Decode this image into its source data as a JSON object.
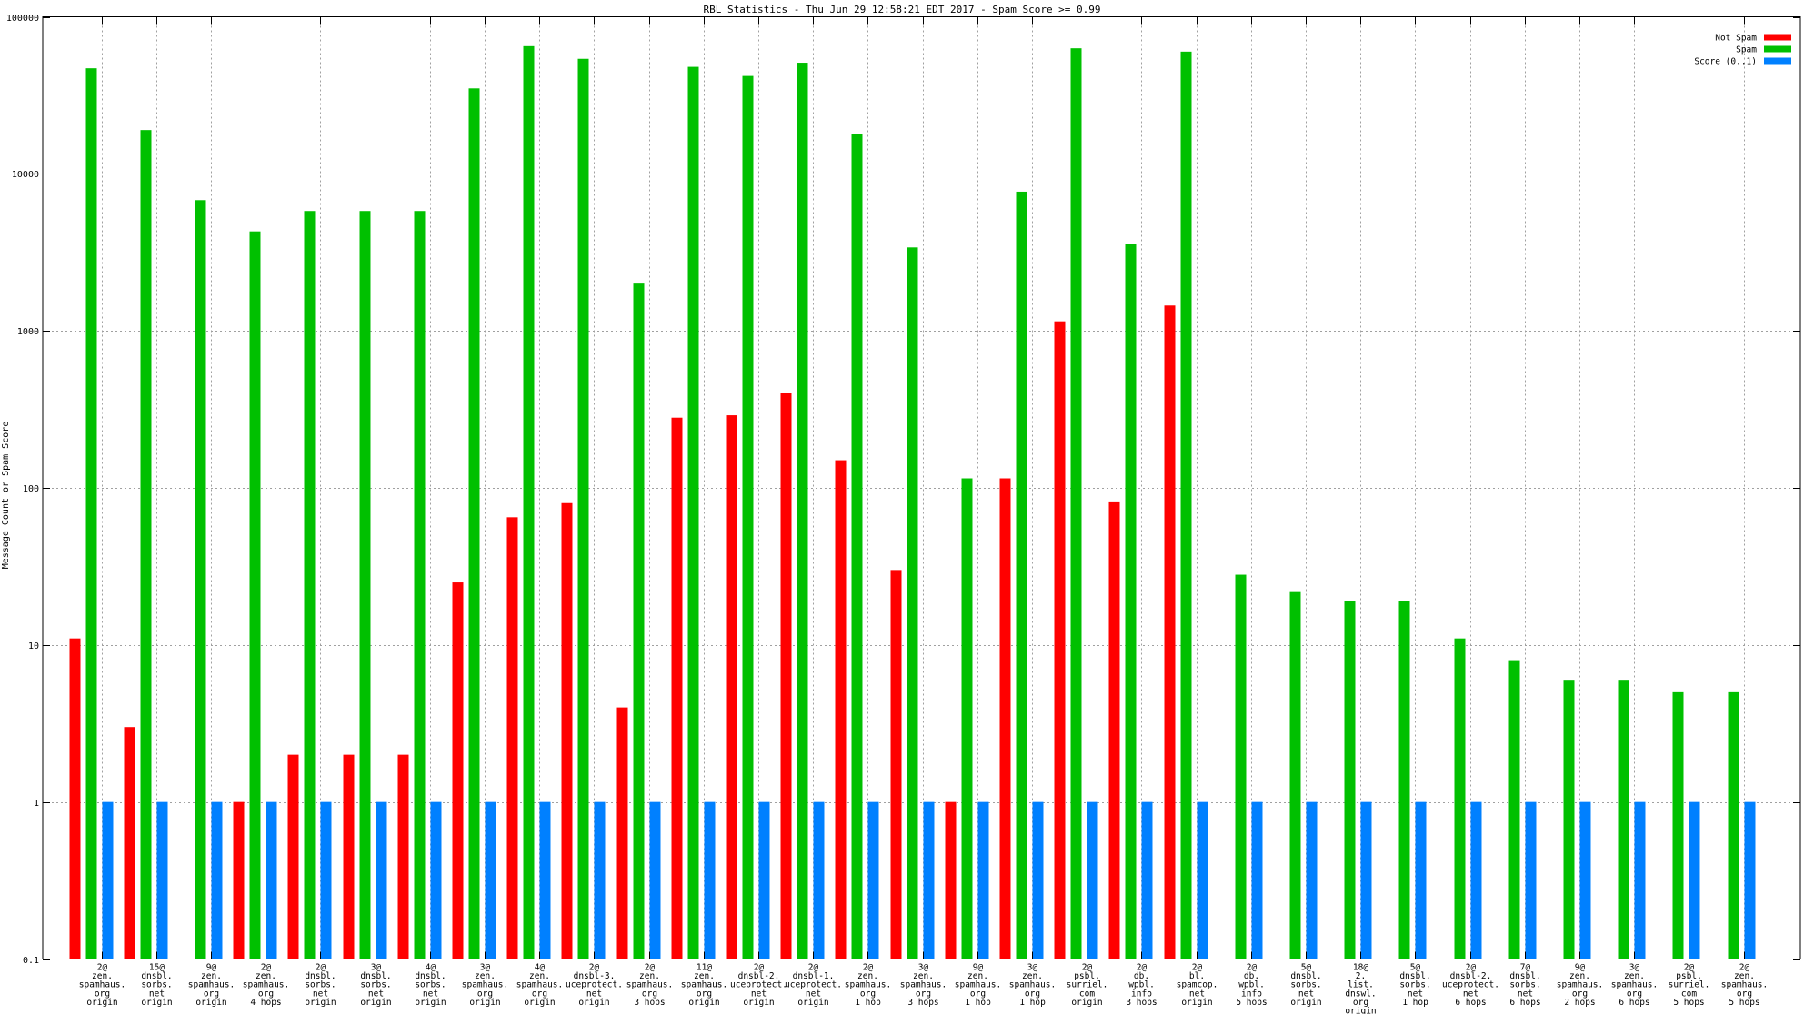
{
  "chart_data": {
    "type": "bar",
    "title": "RBL Statistics - Thu Jun 29 12:58:21 EDT 2017 - Spam Score >= 0.99",
    "xlabel": "",
    "ylabel": "Message Count or Spam Score",
    "yscale": "log",
    "ylim": [
      0.1,
      100000
    ],
    "yticks": [
      {
        "value": 0.1,
        "label": "0.1"
      },
      {
        "value": 1,
        "label": "1"
      },
      {
        "value": 10,
        "label": "10"
      },
      {
        "value": 100,
        "label": "100"
      },
      {
        "value": 1000,
        "label": "1000"
      },
      {
        "value": 10000,
        "label": "10000"
      },
      {
        "value": 100000,
        "label": "100000"
      }
    ],
    "grid": true,
    "legend_position": "top-right",
    "categories": [
      [
        "2@",
        "zen.",
        "spamhaus.",
        "org",
        "origin"
      ],
      [
        "15@",
        "dnsbl.",
        "sorbs.",
        "net",
        "origin"
      ],
      [
        "9@",
        "zen.",
        "spamhaus.",
        "org",
        "origin"
      ],
      [
        "2@",
        "zen.",
        "spamhaus.",
        "org",
        "4 hops"
      ],
      [
        "2@",
        "dnsbl.",
        "sorbs.",
        "net",
        "origin"
      ],
      [
        "3@",
        "dnsbl.",
        "sorbs.",
        "net",
        "origin"
      ],
      [
        "4@",
        "dnsbl.",
        "sorbs.",
        "net",
        "origin"
      ],
      [
        "3@",
        "zen.",
        "spamhaus.",
        "org",
        "origin"
      ],
      [
        "4@",
        "zen.",
        "spamhaus.",
        "org",
        "origin"
      ],
      [
        "2@",
        "dnsbl-3.",
        "uceprotect.",
        "net",
        "origin"
      ],
      [
        "2@",
        "zen.",
        "spamhaus.",
        "org",
        "3 hops"
      ],
      [
        "11@",
        "zen.",
        "spamhaus.",
        "org",
        "origin"
      ],
      [
        "2@",
        "dnsbl-2.",
        "uceprotect.",
        "net",
        "origin"
      ],
      [
        "2@",
        "dnsbl-1.",
        "uceprotect.",
        "net",
        "origin"
      ],
      [
        "2@",
        "zen.",
        "spamhaus.",
        "org",
        "1 hop"
      ],
      [
        "3@",
        "zen.",
        "spamhaus.",
        "org",
        "3 hops"
      ],
      [
        "9@",
        "zen.",
        "spamhaus.",
        "org",
        "1 hop"
      ],
      [
        "3@",
        "zen.",
        "spamhaus.",
        "org",
        "1 hop"
      ],
      [
        "2@",
        "psbl.",
        "surriel.",
        "com",
        "origin"
      ],
      [
        "2@",
        "db.",
        "wpbl.",
        "info",
        "3 hops"
      ],
      [
        "2@",
        "bl.",
        "spamcop.",
        "net",
        "origin"
      ],
      [
        "2@",
        "db.",
        "wpbl.",
        "info",
        "5 hops"
      ],
      [
        "5@",
        "dnsbl.",
        "sorbs.",
        "net",
        "origin"
      ],
      [
        "18@",
        "2.",
        "list.",
        "dnswl.",
        "org",
        "origin"
      ],
      [
        "5@",
        "dnsbl.",
        "sorbs.",
        "net",
        "1 hop"
      ],
      [
        "2@",
        "dnsbl-2.",
        "uceprotect.",
        "net",
        "6 hops"
      ],
      [
        "7@",
        "dnsbl.",
        "sorbs.",
        "net",
        "6 hops"
      ],
      [
        "9@",
        "zen.",
        "spamhaus.",
        "org",
        "2 hops"
      ],
      [
        "3@",
        "zen.",
        "spamhaus.",
        "org",
        "6 hops"
      ],
      [
        "2@",
        "psbl.",
        "surriel.",
        "com",
        "5 hops"
      ],
      [
        "2@",
        "zen.",
        "spamhaus.",
        "org",
        "5 hops"
      ]
    ],
    "series": [
      {
        "name": "Not Spam",
        "color": "#ff0000",
        "values": [
          11,
          3,
          null,
          1,
          2,
          2,
          2,
          25,
          65,
          80,
          4,
          280,
          290,
          400,
          150,
          30,
          1,
          115,
          1150,
          82,
          1450,
          null,
          null,
          null,
          null,
          null,
          null,
          null,
          null,
          null,
          null
        ]
      },
      {
        "name": "Spam",
        "color": "#00c000",
        "values": [
          47000,
          19000,
          6800,
          4300,
          5800,
          5800,
          5800,
          35000,
          65000,
          54000,
          2000,
          48000,
          42000,
          51000,
          18000,
          3400,
          115,
          7700,
          63000,
          3600,
          60000,
          28,
          22,
          19,
          19,
          11,
          8,
          6,
          6,
          5,
          5
        ]
      },
      {
        "name": "Score (0..1)",
        "color": "#0080ff",
        "values": [
          1,
          1,
          1,
          1,
          1,
          1,
          1,
          1,
          1,
          1,
          1,
          1,
          1,
          1,
          1,
          1,
          1,
          1,
          1,
          1,
          1,
          1,
          1,
          1,
          1,
          1,
          1,
          1,
          1,
          1,
          1
        ]
      }
    ]
  }
}
